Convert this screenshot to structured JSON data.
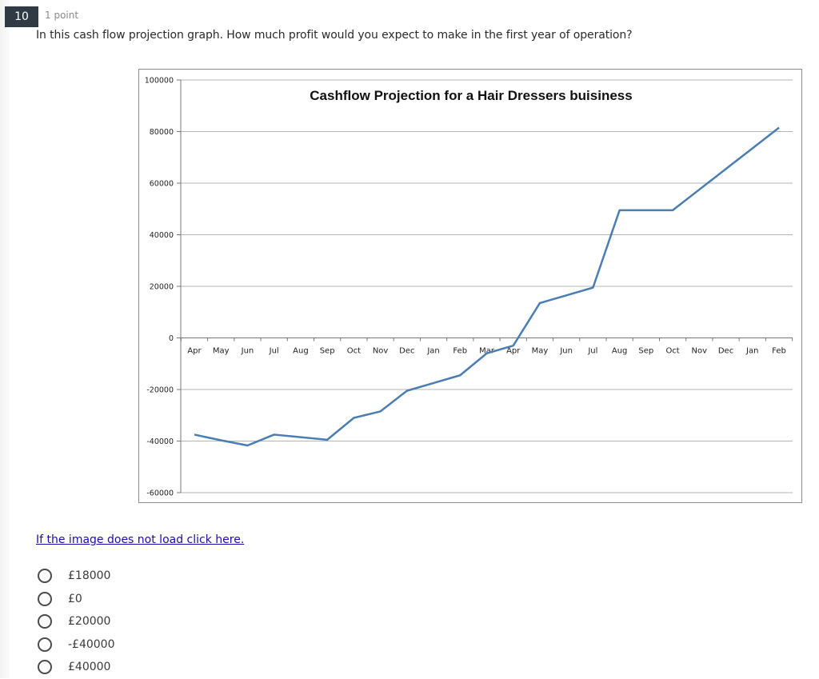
{
  "question": {
    "number": "10",
    "points": "1 point",
    "text": "In this cash flow projection graph. How much profit would you expect to make in the first year of operation?"
  },
  "image_link": "If the image does not load click here.",
  "options": [
    {
      "label": "£18000"
    },
    {
      "label": "£0"
    },
    {
      "label": "£20000"
    },
    {
      "label": "-£40000"
    },
    {
      "label": "£40000"
    }
  ],
  "colors": {
    "line": "#4a7eb3",
    "grid": "#b4b4b4",
    "question_badge": "#2f3a44",
    "link": "#1a0dab"
  },
  "chart_data": {
    "type": "line",
    "title": "Cashflow Projection for a Hair Dressers buisiness",
    "categories": [
      "Apr",
      "May",
      "Jun",
      "Jul",
      "Aug",
      "Sep",
      "Oct",
      "Nov",
      "Dec",
      "Jan",
      "Feb",
      "Mar",
      "Apr",
      "May",
      "Jun",
      "Jul",
      "Aug",
      "Sep",
      "Oct",
      "Nov",
      "Dec",
      "Jan",
      "Feb"
    ],
    "y_ticks": [
      "100000",
      "80000",
      "60000",
      "40000",
      "20000",
      "0",
      "-20000",
      "-40000",
      "-60000"
    ],
    "ylim": [
      -60000,
      100000
    ],
    "grid": true,
    "series": [
      {
        "values": [
          -37500,
          -39700,
          -41700,
          -37500,
          -38500,
          -39500,
          -31000,
          -28500,
          -20500,
          -17500,
          -14500,
          -6000,
          -3000,
          13500,
          16500,
          19500,
          49500,
          49500,
          49500,
          57500,
          65500,
          73500,
          81500
        ]
      }
    ]
  }
}
